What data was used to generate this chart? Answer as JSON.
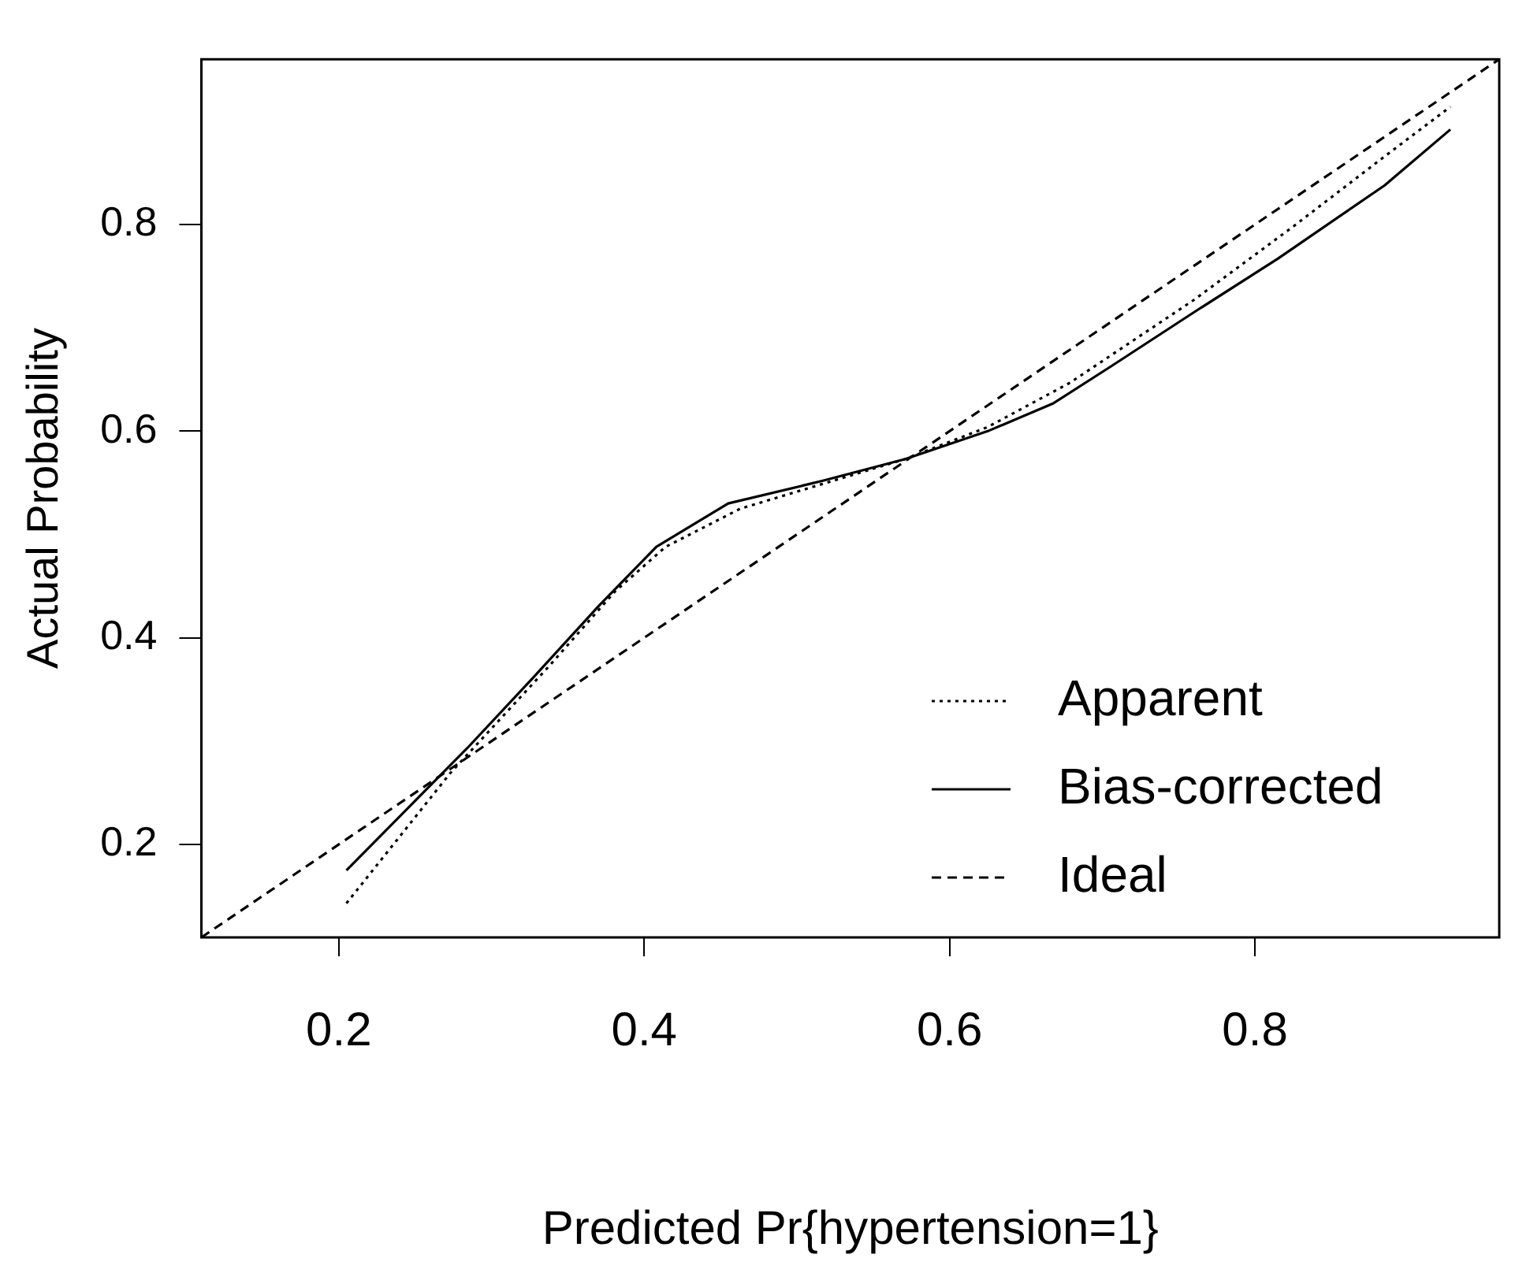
{
  "chart_data": {
    "type": "line",
    "xlabel": "Predicted Pr{hypertension=1}",
    "ylabel": "Actual Probability",
    "xlim": [
      0.11,
      0.96
    ],
    "ylim": [
      0.11,
      0.96
    ],
    "xticks": [
      0.2,
      0.4,
      0.6,
      0.8
    ],
    "yticks": [
      0.2,
      0.4,
      0.6,
      0.8
    ],
    "grid": false,
    "legend": "bottom right",
    "marker": "none",
    "series": [
      {
        "name": "Apparent",
        "color": "#000000",
        "line_style": "dotted",
        "x": [
          0.205,
          0.273,
          0.338,
          0.381,
          0.414,
          0.463,
          0.517,
          0.571,
          0.625,
          0.679,
          0.76,
          0.825,
          0.885,
          0.928
        ],
        "values": [
          0.143,
          0.269,
          0.373,
          0.445,
          0.488,
          0.525,
          0.549,
          0.573,
          0.604,
          0.647,
          0.727,
          0.798,
          0.866,
          0.914
        ]
      },
      {
        "name": "Bias-corrected",
        "color": "#000000",
        "line_style": "solid",
        "x": [
          0.205,
          0.284,
          0.327,
          0.371,
          0.408,
          0.455,
          0.517,
          0.571,
          0.625,
          0.668,
          0.706,
          0.76,
          0.815,
          0.885,
          0.928
        ],
        "values": [
          0.175,
          0.293,
          0.361,
          0.432,
          0.488,
          0.53,
          0.552,
          0.573,
          0.6,
          0.627,
          0.663,
          0.715,
          0.767,
          0.838,
          0.892
        ]
      },
      {
        "name": "Ideal",
        "color": "#000000",
        "line_style": "dashed",
        "x": [
          0.11,
          0.96
        ],
        "values": [
          0.11,
          0.96
        ]
      }
    ]
  }
}
